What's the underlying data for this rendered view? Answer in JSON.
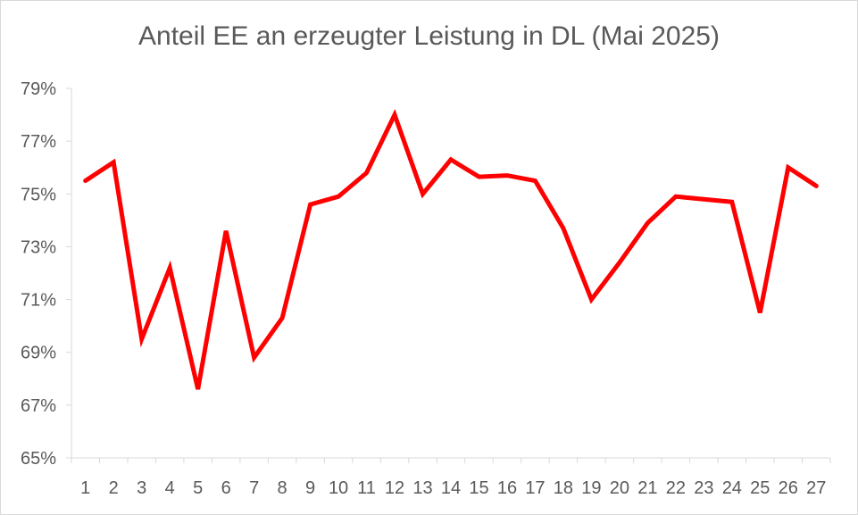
{
  "chart_data": {
    "type": "line",
    "title": "Anteil EE an erzeugter Leistung in DL (Mai 2025)",
    "xlabel": "",
    "ylabel": "",
    "categories": [
      "1",
      "2",
      "3",
      "4",
      "5",
      "6",
      "7",
      "8",
      "9",
      "10",
      "11",
      "12",
      "13",
      "14",
      "15",
      "16",
      "17",
      "18",
      "19",
      "20",
      "21",
      "22",
      "23",
      "24",
      "25",
      "26",
      "27"
    ],
    "series": [
      {
        "values": [
          75.5,
          76.2,
          69.5,
          72.2,
          67.6,
          73.6,
          68.8,
          70.3,
          74.6,
          74.9,
          75.8,
          78.0,
          75.0,
          76.3,
          75.65,
          75.7,
          75.5,
          73.7,
          71.0,
          72.4,
          73.9,
          74.9,
          74.8,
          74.7,
          70.5,
          76.0,
          75.3
        ],
        "color": "#ff0000"
      }
    ],
    "ylim": [
      65,
      79
    ],
    "yticks": [
      65,
      67,
      69,
      71,
      73,
      75,
      77,
      79
    ],
    "ytick_labels": [
      "65%",
      "67%",
      "69%",
      "71%",
      "73%",
      "75%",
      "77%",
      "79%"
    ],
    "grid": false,
    "legend": "none"
  }
}
